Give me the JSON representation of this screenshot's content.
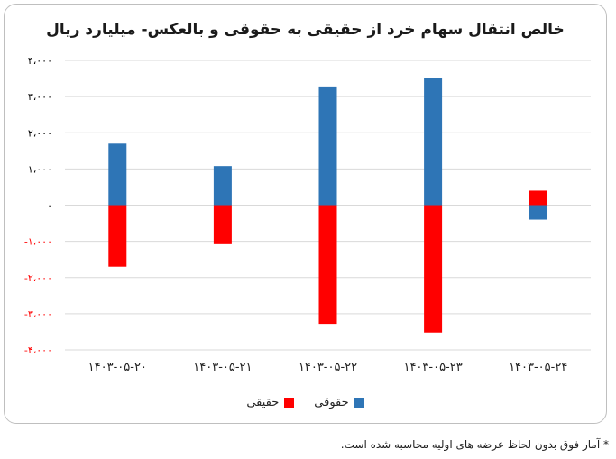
{
  "chart_data": {
    "type": "bar",
    "title": "خالص انتقال سهام خرد از حقیقی به حقوقی و بالعکس- میلیارد ریال",
    "categories": [
      "۱۴۰۳-۰۵-۲۰",
      "۱۴۰۳-۰۵-۲۱",
      "۱۴۰۳-۰۵-۲۲",
      "۱۴۰۳-۰۵-۲۳",
      "۱۴۰۳-۰۵-۲۴"
    ],
    "series": [
      {
        "name": "حقوقی",
        "color": "#2e75b6",
        "values": [
          1700,
          1080,
          3280,
          3520,
          -400
        ]
      },
      {
        "name": "حقیقی",
        "color": "#ff0000",
        "values": [
          -1700,
          -1080,
          -3280,
          -3520,
          400
        ]
      }
    ],
    "ylim": [
      -4000,
      4000
    ],
    "yticks": [
      4000,
      3000,
      2000,
      1000,
      0,
      -1000,
      -2000,
      -3000,
      -4000
    ],
    "ytick_labels": [
      "۴،۰۰۰",
      "۳،۰۰۰",
      "۲،۰۰۰",
      "۱،۰۰۰",
      "۰",
      "-۱،۰۰۰",
      "-۲،۰۰۰",
      "-۳،۰۰۰",
      "-۴،۰۰۰"
    ],
    "ytick_colors": [
      "#000000",
      "#000000",
      "#000000",
      "#000000",
      "#000000",
      "#ff0000",
      "#ff0000",
      "#ff0000",
      "#ff0000"
    ],
    "grid": true,
    "legend_position": "bottom",
    "stacked": true
  },
  "legend": {
    "item1_label": "حقوقی",
    "item2_label": "حقیقی"
  },
  "footnote": "* آمار فوق بدون لحاظ عرضه های اولیه محاسبه شده است."
}
